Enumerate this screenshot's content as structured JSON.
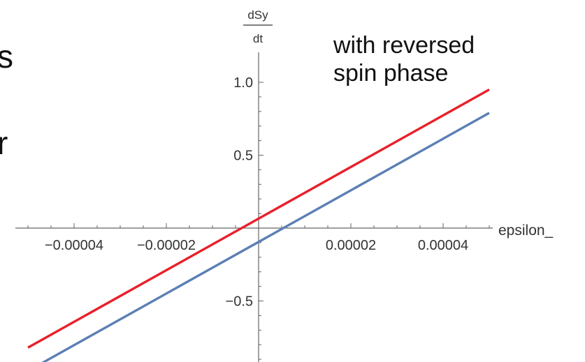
{
  "slide_fragments": {
    "top": "s",
    "middle": "r"
  },
  "annotation": {
    "line1": "with reversed",
    "line2": "spin phase"
  },
  "chart_data": {
    "type": "line",
    "title": "",
    "xlabel": "epsilon_",
    "ylabel_numerator": "dSy",
    "ylabel_denominator": "dt",
    "xlim": [
      -5.2e-05,
      5.2e-05
    ],
    "ylim": [
      -0.85,
      1.05
    ],
    "x_ticks": [
      {
        "value": -4e-05,
        "label": "−0.00004"
      },
      {
        "value": -2e-05,
        "label": "−0.00002"
      },
      {
        "value": 2e-05,
        "label": "0.00002"
      },
      {
        "value": 4e-05,
        "label": "0.00004"
      }
    ],
    "y_ticks": [
      {
        "value": 1.0,
        "label": "1.0"
      },
      {
        "value": 0.5,
        "label": "0.5"
      },
      {
        "value": -0.5,
        "label": "−0.5"
      }
    ],
    "grid": false,
    "series": [
      {
        "color": "#e8202a",
        "x": [
          -5e-05,
          5e-05
        ],
        "y": [
          -0.82,
          0.95
        ]
      },
      {
        "color": "#5b7fb5",
        "x": [
          -5e-05,
          5e-05
        ],
        "y": [
          -0.98,
          0.79
        ]
      }
    ]
  }
}
